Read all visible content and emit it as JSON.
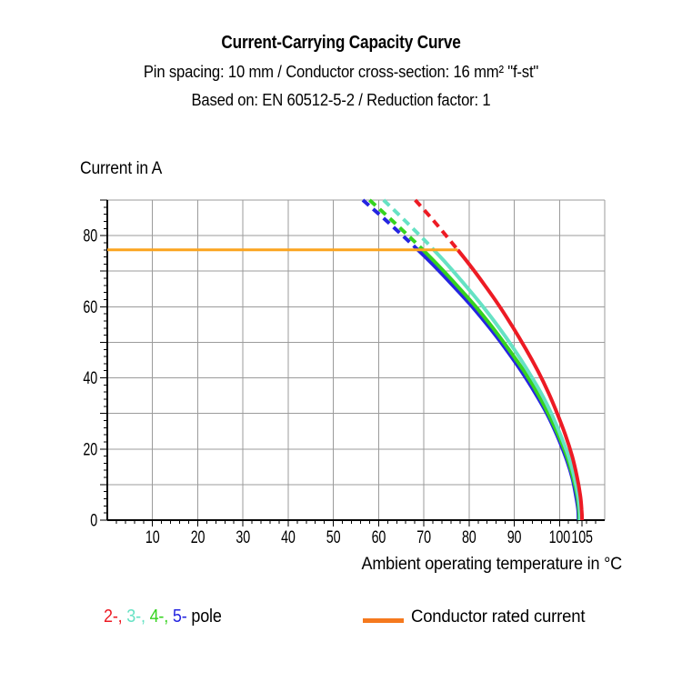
{
  "chart_data": {
    "type": "line",
    "title": "Current-Carrying Capacity Curve",
    "subtitle": "Pin spacing: 10 mm / Conductor cross-section: 16 mm² \"f-st\"",
    "based_on": "Based on: EN 60512-5-2 / Reduction factor: 1",
    "xlabel": "Ambient operating temperature in °C",
    "ylabel": "Current in A",
    "xlim": [
      0,
      110
    ],
    "ylim": [
      0,
      90
    ],
    "grid": true,
    "grid_color": "#9b9b9b",
    "axis_color": "#000000",
    "x_major_gridlines": [
      10,
      20,
      30,
      40,
      50,
      60,
      70,
      80,
      90,
      100
    ],
    "x_major_ticks": [
      10,
      20,
      30,
      40,
      50,
      60,
      70,
      80,
      90,
      100,
      105
    ],
    "x_tick_labels": [
      10,
      20,
      30,
      40,
      50,
      60,
      70,
      80,
      90,
      100,
      105
    ],
    "x_minor_tick_step": 2,
    "y_major_gridlines": [
      10,
      20,
      30,
      40,
      50,
      60,
      70,
      80
    ],
    "y_major_tick_step": 10,
    "y_tick_labels": [
      0,
      20,
      40,
      60,
      80
    ],
    "y_minor_tick_step": 2,
    "dashed_above_current_a": 76,
    "rated_current_line": {
      "current_a": 76,
      "x_from": 0,
      "x_to": 77.5,
      "color": "#fba41f",
      "label": "Conductor rated current"
    },
    "series": [
      {
        "name": "5-pole",
        "poles": 5,
        "color": "#2525e0",
        "points_t_i": [
          [
            56.5,
            90
          ],
          [
            61.9,
            84
          ],
          [
            67.0,
            78
          ],
          [
            68.7,
            76
          ],
          [
            71.9,
            72
          ],
          [
            76.4,
            66
          ],
          [
            80.7,
            60
          ],
          [
            84.6,
            54
          ],
          [
            88.2,
            48
          ],
          [
            91.5,
            42
          ],
          [
            94.5,
            36
          ],
          [
            97.2,
            30
          ],
          [
            99.4,
            24
          ],
          [
            101.3,
            18
          ],
          [
            102.8,
            12
          ],
          [
            103.6,
            7
          ],
          [
            104.1,
            3
          ],
          [
            104.2,
            0
          ]
        ]
      },
      {
        "name": "4-pole",
        "poles": 4,
        "color": "#35d31f",
        "points_t_i": [
          [
            58.0,
            90
          ],
          [
            63.2,
            84
          ],
          [
            68.2,
            78
          ],
          [
            69.8,
            76
          ],
          [
            72.9,
            72
          ],
          [
            77.3,
            66
          ],
          [
            81.5,
            60
          ],
          [
            85.3,
            54
          ],
          [
            88.8,
            48
          ],
          [
            92.1,
            42
          ],
          [
            95.0,
            36
          ],
          [
            97.5,
            30
          ],
          [
            99.7,
            24
          ],
          [
            101.6,
            18
          ],
          [
            103.0,
            12
          ],
          [
            103.9,
            7
          ],
          [
            104.3,
            3
          ],
          [
            104.4,
            0
          ]
        ]
      },
      {
        "name": "3-pole",
        "poles": 3,
        "color": "#66e2c4",
        "points_t_i": [
          [
            61.1,
            90
          ],
          [
            66.0,
            84
          ],
          [
            70.7,
            78
          ],
          [
            72.2,
            76
          ],
          [
            75.1,
            72
          ],
          [
            79.2,
            66
          ],
          [
            83.1,
            60
          ],
          [
            86.7,
            54
          ],
          [
            90.0,
            48
          ],
          [
            93.0,
            42
          ],
          [
            95.8,
            36
          ],
          [
            98.2,
            30
          ],
          [
            100.2,
            24
          ],
          [
            102.0,
            18
          ],
          [
            103.3,
            12
          ],
          [
            104.1,
            7
          ],
          [
            104.5,
            3
          ],
          [
            104.6,
            0
          ]
        ]
      },
      {
        "name": "2-pole",
        "poles": 2,
        "color": "#ed1b24",
        "points_t_i": [
          [
            68.1,
            90
          ],
          [
            72.3,
            84
          ],
          [
            76.2,
            78
          ],
          [
            77.5,
            76
          ],
          [
            80.0,
            72
          ],
          [
            83.5,
            66
          ],
          [
            86.8,
            60
          ],
          [
            89.8,
            54
          ],
          [
            92.6,
            48
          ],
          [
            95.2,
            42
          ],
          [
            97.5,
            36
          ],
          [
            99.5,
            30
          ],
          [
            101.3,
            24
          ],
          [
            102.8,
            18
          ],
          [
            103.9,
            12
          ],
          [
            104.6,
            7
          ],
          [
            104.9,
            3
          ],
          [
            105.0,
            0
          ]
        ]
      }
    ],
    "legend": {
      "pole_items": [
        {
          "label": "2-,",
          "color": "#ed1b24"
        },
        {
          "label": "3-,",
          "color": "#66e2c4"
        },
        {
          "label": "4-,",
          "color": "#35d31f"
        },
        {
          "label": "5-",
          "color": "#2525e0"
        }
      ],
      "separator": " ",
      "suffix": " pole",
      "rated_label": "Conductor rated current",
      "rated_swatch_color": "#f5791e"
    }
  }
}
